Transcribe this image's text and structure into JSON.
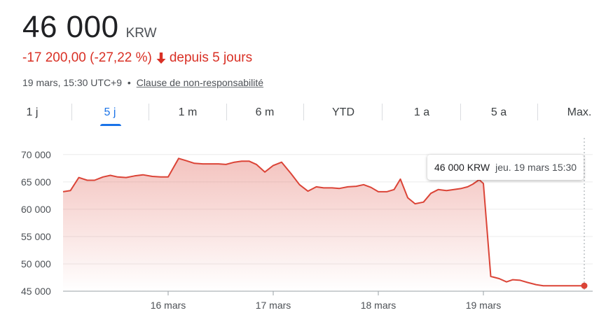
{
  "header": {
    "price": "46 000",
    "currency": "KRW",
    "change": "-17 200,00 (-27,22 %)",
    "change_period": "depuis 5 jours",
    "change_arrow_icon": "arrow-down-icon",
    "timestamp": "19 mars, 15:30 UTC+9",
    "separator": "•",
    "disclaimer": "Clause de non-responsabilité",
    "down_color": "#d93025"
  },
  "tabs": [
    {
      "label": "1 j",
      "active": false
    },
    {
      "label": "5 j",
      "active": true
    },
    {
      "label": "1 m",
      "active": false
    },
    {
      "label": "6 m",
      "active": false
    },
    {
      "label": "YTD",
      "active": false
    },
    {
      "label": "1 a",
      "active": false
    },
    {
      "label": "5 a",
      "active": false
    },
    {
      "label": "Max.",
      "active": false
    }
  ],
  "tooltip": {
    "value": "46 000 KRW",
    "date": "jeu. 19 mars 15:30"
  },
  "chart_data": {
    "type": "area",
    "color": "#db4437",
    "ylim": [
      45000,
      71000
    ],
    "yticks": [
      45000,
      50000,
      55000,
      60000,
      65000,
      70000
    ],
    "ytick_labels": [
      "45 000",
      "50 000",
      "55 000",
      "60 000",
      "65 000",
      "70 000"
    ],
    "xlim": [
      0,
      5
    ],
    "xticks": [
      1,
      2,
      3,
      4
    ],
    "xtick_labels": [
      "16 mars",
      "17 mars",
      "18 mars",
      "19 mars"
    ],
    "grid": true,
    "x": [
      0,
      0.07,
      0.15,
      0.23,
      0.3,
      0.38,
      0.45,
      0.52,
      0.6,
      0.68,
      0.76,
      0.85,
      0.93,
      1.0,
      1.1,
      1.17,
      1.25,
      1.33,
      1.4,
      1.48,
      1.55,
      1.63,
      1.7,
      1.77,
      1.84,
      1.92,
      2.0,
      2.08,
      2.17,
      2.25,
      2.33,
      2.41,
      2.48,
      2.56,
      2.63,
      2.71,
      2.79,
      2.86,
      2.93,
      3.0,
      3.08,
      3.15,
      3.21,
      3.28,
      3.35,
      3.43,
      3.5,
      3.57,
      3.65,
      3.72,
      3.79,
      3.85,
      3.9,
      3.96,
      4.0,
      4.07,
      4.15,
      4.22,
      4.28,
      4.35,
      4.42,
      4.5,
      4.57,
      4.65,
      4.72,
      4.8,
      4.88,
      4.96
    ],
    "y": [
      63200,
      63400,
      65800,
      65300,
      65300,
      65900,
      66200,
      65900,
      65800,
      66100,
      66300,
      66000,
      65900,
      65900,
      69300,
      68900,
      68400,
      68300,
      68300,
      68300,
      68200,
      68600,
      68800,
      68800,
      68200,
      66800,
      68000,
      68600,
      66500,
      64500,
      63300,
      64100,
      63900,
      63900,
      63800,
      64100,
      64200,
      64500,
      64000,
      63200,
      63200,
      63600,
      65500,
      62100,
      61000,
      61300,
      62900,
      63600,
      63400,
      63600,
      63800,
      64100,
      64600,
      65400,
      64700,
      47700,
      47300,
      46700,
      47100,
      47000,
      46600,
      46200,
      46000,
      46000,
      46000,
      46000,
      46000,
      46000
    ]
  }
}
